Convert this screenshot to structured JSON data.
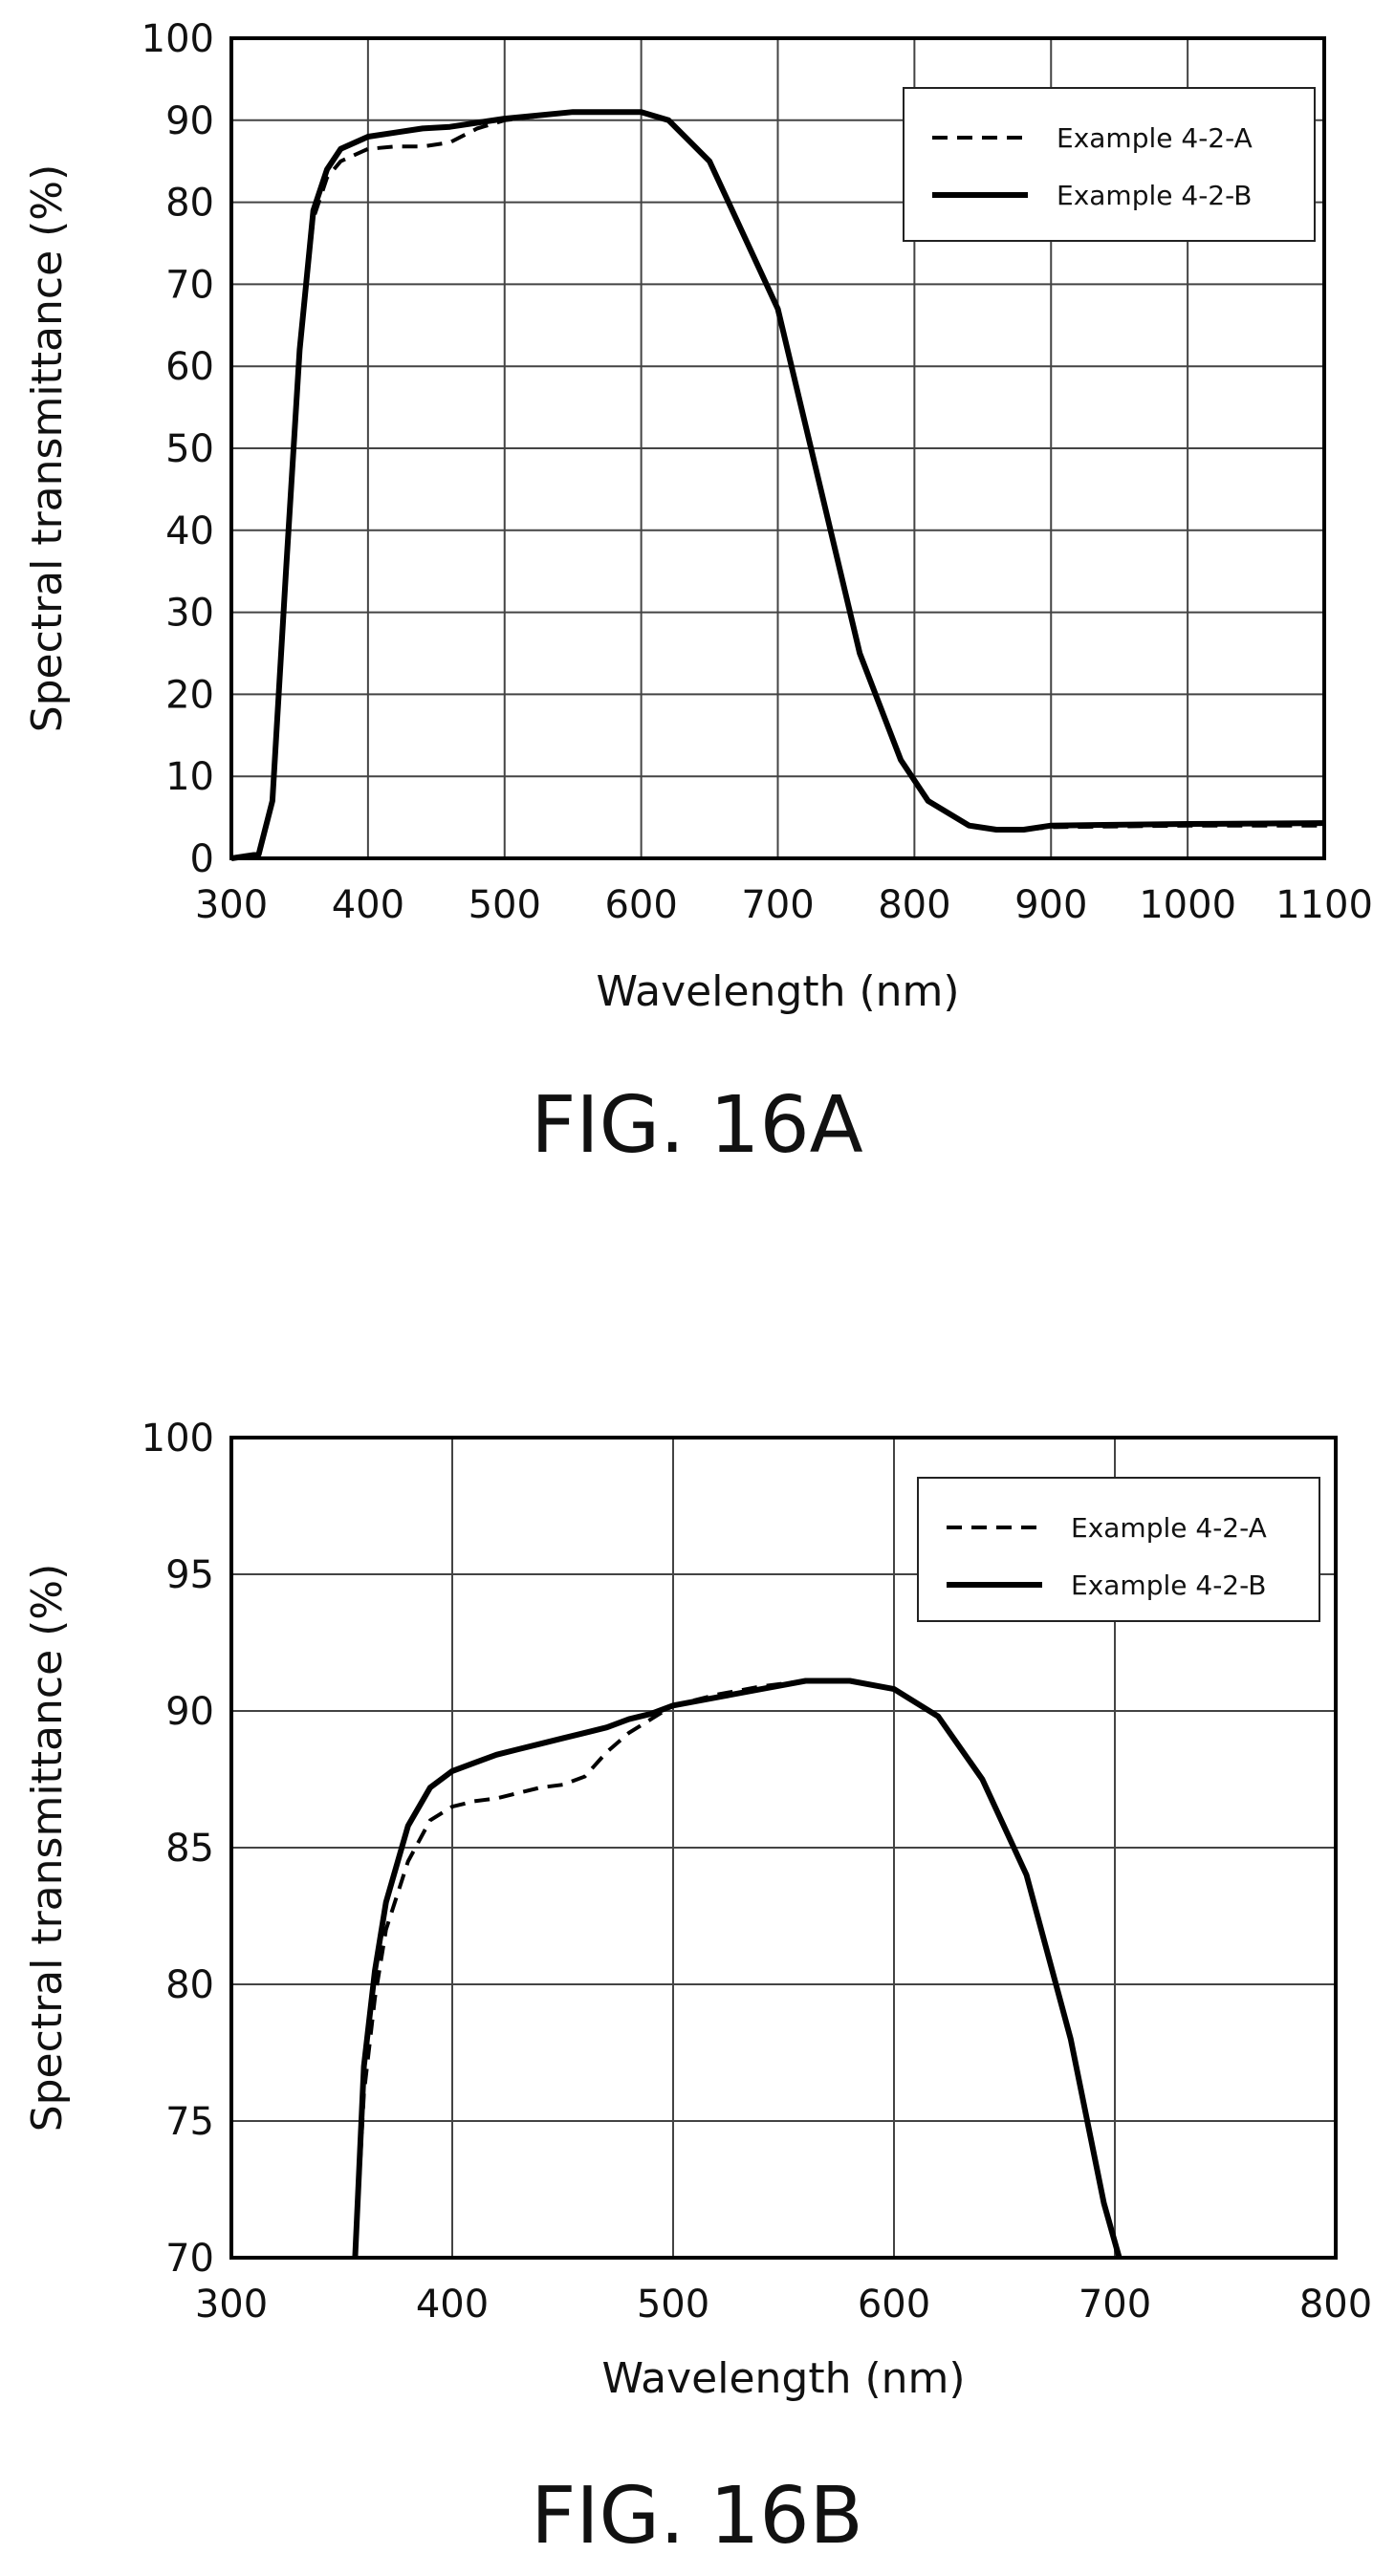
{
  "figures": [
    {
      "caption": "FIG. 16A",
      "chart_data": {
        "type": "line",
        "title": "",
        "xlabel": "Wavelength (nm)",
        "ylabel": "Spectral transmittance (%)",
        "xlim": [
          300,
          1100
        ],
        "ylim": [
          0,
          100
        ],
        "x_ticks": [
          300,
          400,
          500,
          600,
          700,
          800,
          900,
          1000,
          1100
        ],
        "y_ticks": [
          0,
          10,
          20,
          30,
          40,
          50,
          60,
          70,
          80,
          90,
          100
        ],
        "x_tick_labels": [
          "300",
          "400",
          "500",
          "600",
          "700",
          "800",
          "900",
          "1000",
          "1100"
        ],
        "y_tick_labels": [
          "0",
          "10",
          "20",
          "30",
          "40",
          "50",
          "60",
          "70",
          "80",
          "90",
          "100"
        ],
        "grid": true,
        "legend_position": "top-right",
        "series": [
          {
            "name": "Example 4-2-A",
            "style": "dashed",
            "x": [
              300,
              320,
              330,
              340,
              350,
              360,
              370,
              380,
              400,
              420,
              440,
              460,
              480,
              500,
              550,
              600,
              620,
              650,
              700,
              730,
              760,
              790,
              810,
              840,
              860,
              880,
              900,
              1000,
              1100
            ],
            "y": [
              0,
              0.5,
              7,
              35,
              62,
              78,
              83,
              85,
              86.5,
              86.8,
              86.8,
              87.3,
              89,
              90,
              91,
              91,
              90,
              85,
              67,
              46,
              25,
              12,
              7,
              4,
              3.5,
              3.5,
              3.8,
              4,
              4
            ]
          },
          {
            "name": "Example 4-2-B",
            "style": "solid",
            "x": [
              300,
              320,
              330,
              340,
              350,
              360,
              370,
              380,
              400,
              420,
              440,
              460,
              480,
              500,
              550,
              600,
              620,
              650,
              700,
              730,
              760,
              790,
              810,
              840,
              860,
              880,
              900,
              1000,
              1100
            ],
            "y": [
              0,
              0.5,
              7,
              35,
              62,
              79,
              84,
              86.5,
              88,
              88.5,
              89,
              89.2,
              89.7,
              90.2,
              91,
              91,
              90,
              85,
              67,
              46,
              25,
              12,
              7,
              4,
              3.5,
              3.5,
              4,
              4.2,
              4.3
            ]
          }
        ]
      }
    },
    {
      "caption": "FIG. 16B",
      "chart_data": {
        "type": "line",
        "title": "",
        "xlabel": "Wavelength (nm)",
        "ylabel": "Spectral transmittance (%)",
        "xlim": [
          300,
          800
        ],
        "ylim": [
          70,
          100
        ],
        "x_ticks": [
          300,
          400,
          500,
          600,
          700,
          800
        ],
        "y_ticks": [
          70,
          75,
          80,
          85,
          90,
          95,
          100
        ],
        "x_tick_labels": [
          "300",
          "400",
          "500",
          "600",
          "700",
          "800"
        ],
        "y_tick_labels": [
          "70",
          "75",
          "80",
          "85",
          "90",
          "95",
          "100"
        ],
        "grid": true,
        "legend_position": "top-right",
        "series": [
          {
            "name": "Example 4-2-A",
            "style": "dashed",
            "x": [
              356,
              360,
              365,
              370,
              380,
              390,
              400,
              410,
              420,
              430,
              440,
              450,
              460,
              470,
              480,
              490,
              500,
              520,
              540,
              560,
              580,
              600,
              620,
              640,
              660,
              680,
              695,
              702
            ],
            "y": [
              70,
              76,
              79.5,
              82,
              84.5,
              86,
              86.5,
              86.7,
              86.8,
              87,
              87.2,
              87.3,
              87.6,
              88.5,
              89.2,
              89.7,
              90.2,
              90.6,
              90.9,
              91.1,
              91.1,
              90.8,
              89.8,
              87.5,
              84,
              78,
              72,
              70
            ]
          },
          {
            "name": "Example 4-2-B",
            "style": "solid",
            "x": [
              356,
              360,
              365,
              370,
              380,
              390,
              400,
              410,
              420,
              430,
              440,
              450,
              460,
              470,
              480,
              490,
              500,
              520,
              540,
              560,
              580,
              600,
              620,
              640,
              660,
              680,
              695,
              702
            ],
            "y": [
              70,
              77,
              80.5,
              83,
              85.8,
              87.2,
              87.8,
              88.1,
              88.4,
              88.6,
              88.8,
              89,
              89.2,
              89.4,
              89.7,
              89.9,
              90.2,
              90.5,
              90.8,
              91.1,
              91.1,
              90.8,
              89.8,
              87.5,
              84,
              78,
              72,
              70
            ]
          }
        ]
      }
    }
  ]
}
